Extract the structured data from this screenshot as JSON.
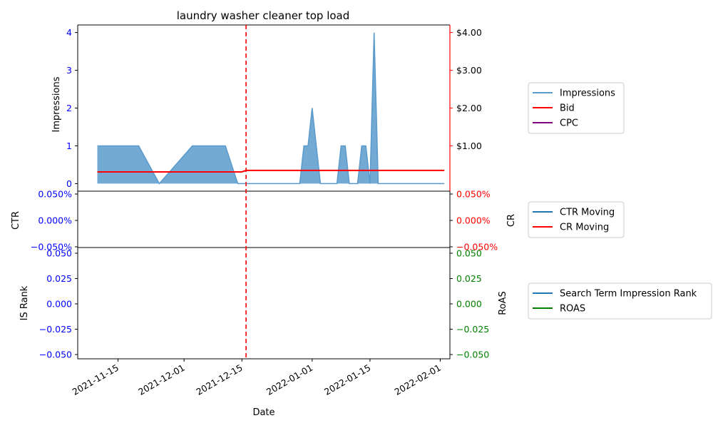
{
  "chart_data": {
    "type": "line",
    "title": "laundry washer cleaner top load",
    "xlabel": "Date",
    "x_ticks": [
      "2021-11-15",
      "2021-12-01",
      "2021-12-15",
      "2022-01-01",
      "2022-01-15",
      "2022-02-01"
    ],
    "vline_date": "2021-12-16",
    "panels": [
      {
        "id": "top",
        "left_label": "Impressions",
        "left_ticks": [
          "0",
          "1",
          "2",
          "3",
          "4"
        ],
        "left_ylim": [
          -0.2,
          4.2
        ],
        "right_ticks": [
          "$1.00",
          "$2.00",
          "$3.00",
          "$4.00"
        ],
        "right_tick_values": [
          1,
          2,
          3,
          4
        ],
        "right_ylim": [
          -0.2,
          4.2
        ],
        "legend": [
          "Impressions",
          "Bid",
          "CPC"
        ],
        "series": [
          {
            "name": "Impressions",
            "color": "#5b9bcc",
            "fill": "#5b9bcc",
            "points": [
              [
                "2021-11-10",
                1
              ],
              [
                "2021-11-20",
                1
              ],
              [
                "2021-11-25",
                0
              ],
              [
                "2021-12-03",
                1
              ],
              [
                "2021-12-11",
                1
              ],
              [
                "2021-12-14",
                0
              ],
              [
                "2021-12-29",
                0
              ],
              [
                "2021-12-30",
                1
              ],
              [
                "2021-12-31",
                1
              ],
              [
                "2022-01-01",
                2
              ],
              [
                "2022-01-03",
                0
              ],
              [
                "2022-01-07",
                0
              ],
              [
                "2022-01-08",
                1
              ],
              [
                "2022-01-09",
                1
              ],
              [
                "2022-01-10",
                0
              ],
              [
                "2022-01-12",
                0
              ],
              [
                "2022-01-13",
                1
              ],
              [
                "2022-01-14",
                1
              ],
              [
                "2022-01-15",
                0
              ],
              [
                "2022-01-16",
                4
              ],
              [
                "2022-01-17",
                0
              ],
              [
                "2022-02-02",
                0
              ]
            ]
          },
          {
            "name": "Bid",
            "color": "#ff0000",
            "points": [
              [
                "2021-11-10",
                0.31
              ],
              [
                "2021-12-15",
                0.31
              ],
              [
                "2021-12-16",
                0.35
              ],
              [
                "2022-02-02",
                0.35
              ]
            ]
          },
          {
            "name": "CPC",
            "color": "#800080",
            "points": []
          }
        ]
      },
      {
        "id": "middle",
        "left_label": "CTR",
        "right_label": "CR",
        "left_ticks": [
          "0.050%",
          "0.000%",
          "−0.050%"
        ],
        "right_ticks": [
          "0.050%",
          "0.000%",
          "−0.050%"
        ],
        "ylim": [
          -0.05,
          0.05
        ],
        "legend": [
          "CTR Moving",
          "CR Moving"
        ],
        "series": [
          {
            "name": "CTR Moving",
            "color": "#1f77b4",
            "points": []
          },
          {
            "name": "CR Moving",
            "color": "#ff0000",
            "points": []
          }
        ]
      },
      {
        "id": "bottom",
        "left_label": "IS Rank",
        "right_label": "RoAS",
        "left_ticks": [
          "0.050",
          "0.025",
          "0.000",
          "−0.025",
          "−0.050"
        ],
        "right_ticks": [
          "0.050",
          "0.025",
          "0.000",
          "−0.025",
          "−0.050"
        ],
        "ylim": [
          -0.055,
          0.055
        ],
        "legend": [
          "Search Term Impression Rank",
          "ROAS"
        ],
        "series": [
          {
            "name": "Search Term Impression Rank",
            "color": "#1f77b4",
            "points": []
          },
          {
            "name": "ROAS",
            "color": "#008000",
            "points": []
          }
        ]
      }
    ],
    "colors": {
      "left_axis_ticks": "#0000ff",
      "top_right_spine": "#ff0000",
      "middle_right_ticks": "#ff0000",
      "bottom_right_ticks": "#008000",
      "vline": "#ff0000"
    }
  }
}
